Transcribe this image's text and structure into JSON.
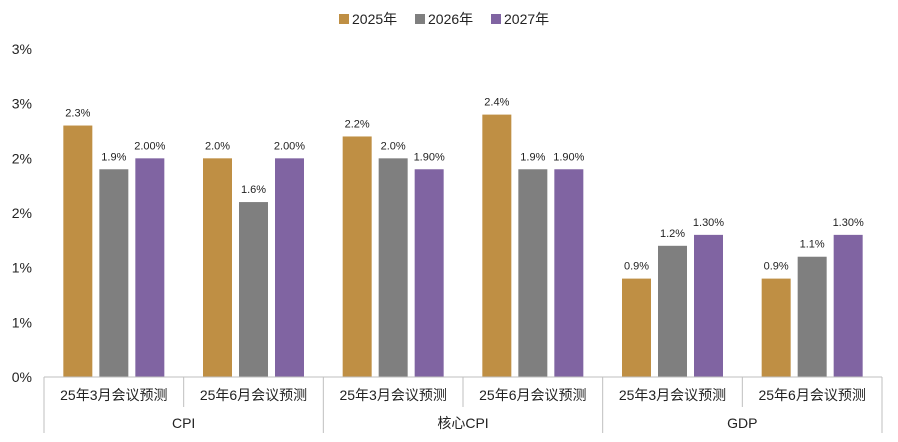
{
  "colors": {
    "s2025": "#BF8F44",
    "s2026": "#7F7F7F",
    "s2027": "#8064A2",
    "axis": "#BFBFBF"
  },
  "chart_data": {
    "type": "bar",
    "title": "",
    "xlabel": "",
    "ylabel": "",
    "ylim": [
      0,
      3.0
    ],
    "grid": false,
    "legend_position": "top",
    "y_ticks": [
      {
        "value": 0.0,
        "label": "0%"
      },
      {
        "value": 0.5,
        "label": "1%"
      },
      {
        "value": 1.0,
        "label": "1%"
      },
      {
        "value": 1.5,
        "label": "2%"
      },
      {
        "value": 2.0,
        "label": "2%"
      },
      {
        "value": 2.5,
        "label": "3%"
      },
      {
        "value": 3.0,
        "label": "3%"
      }
    ],
    "categories": [
      "25年3月会议预测",
      "25年6月会议预测",
      "25年3月会议预测",
      "25年6月会议预测",
      "25年3月会议预测",
      "25年6月会议预测"
    ],
    "groups": [
      {
        "label": "CPI",
        "span": [
          0,
          1
        ]
      },
      {
        "label": "核心CPI",
        "span": [
          2,
          3
        ]
      },
      {
        "label": "GDP",
        "span": [
          4,
          5
        ]
      }
    ],
    "series": [
      {
        "name": "2025年",
        "color_key": "s2025",
        "values": [
          2.3,
          2.0,
          2.2,
          2.4,
          0.9,
          0.9
        ],
        "labels": [
          "2.3%",
          "2.0%",
          "2.2%",
          "2.4%",
          "0.9%",
          "0.9%"
        ]
      },
      {
        "name": "2026年",
        "color_key": "s2026",
        "values": [
          1.9,
          1.6,
          2.0,
          1.9,
          1.2,
          1.1
        ],
        "labels": [
          "1.9%",
          "1.6%",
          "2.0%",
          "1.9%",
          "1.2%",
          "1.1%"
        ]
      },
      {
        "name": "2027年",
        "color_key": "s2027",
        "values": [
          2.0,
          2.0,
          1.9,
          1.9,
          1.3,
          1.3
        ],
        "labels": [
          "2.00%",
          "2.00%",
          "1.90%",
          "1.90%",
          "1.30%",
          "1.30%"
        ]
      }
    ]
  }
}
